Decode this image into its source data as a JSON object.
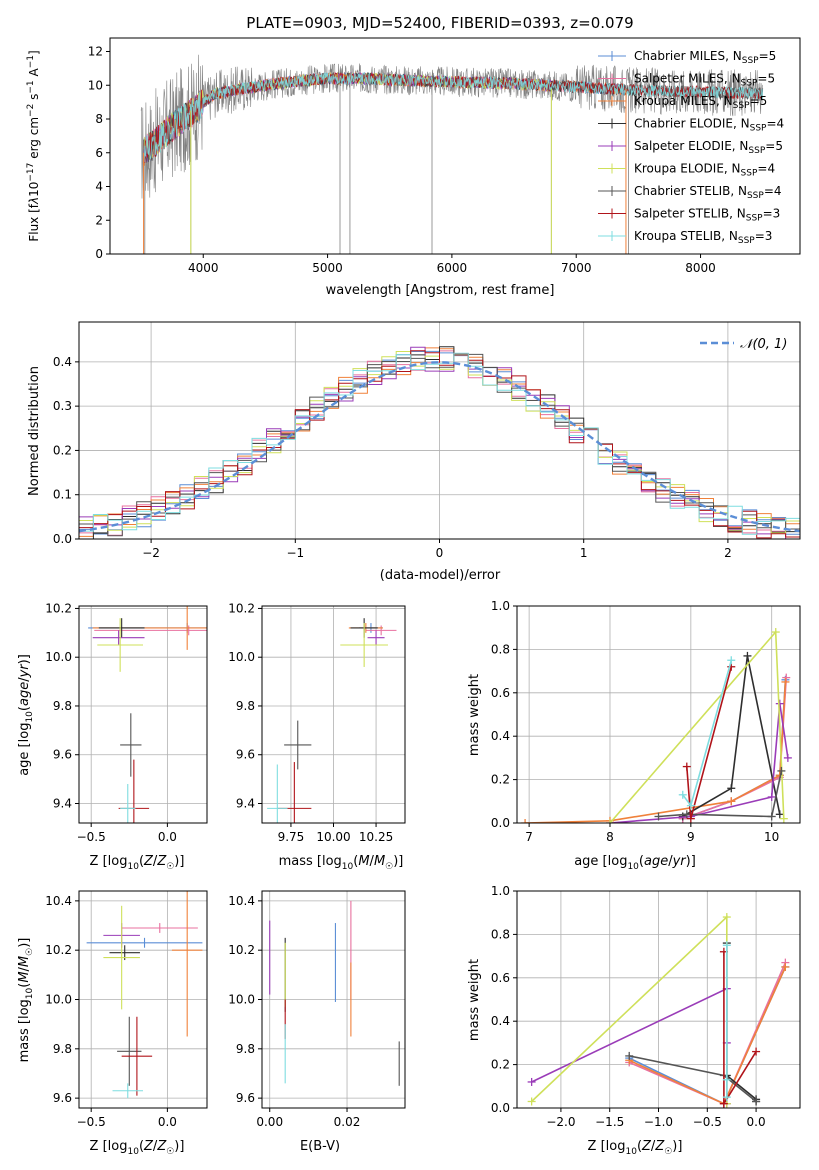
{
  "figure_title": "PLATE=0903, MJD=52400, FIBERID=0393, z=0.079",
  "colors": {
    "Chabrier MILES": "#5b8ed6",
    "Salpeter MILES": "#e8719f",
    "Kroupa MILES": "#f0813a",
    "Chabrier ELODIE": "#2e2e2e",
    "Salpeter ELODIE": "#9a3cb8",
    "Kroupa ELODIE": "#cfe05a",
    "Chabrier STELIB": "#555555",
    "Salpeter STELIB": "#b0141a",
    "Kroupa STELIB": "#7fdde0",
    "data": "#808080",
    "gauss": "#5b8ed6"
  },
  "chart_data": [
    {
      "id": "spectrum",
      "type": "line",
      "title": "PLATE=0903, MJD=52400, FIBERID=0393, z=0.079",
      "xlabel": "wavelength [Angstrom, rest frame]",
      "ylabel": "Flux [f_λ10^-17 erg cm^-2 s^-1 A^-1]",
      "xlim": [
        3250,
        8800
      ],
      "ylim": [
        0,
        12.8
      ],
      "xticks": [
        4000,
        5000,
        6000,
        7000,
        8000
      ],
      "yticks": [
        0,
        2,
        4,
        6,
        8,
        10,
        12
      ],
      "grid": false,
      "legend_position": "right",
      "legend": [
        {
          "label": "Chabrier MILES, N",
          "sub": "SSP",
          "suffix": "=5",
          "color": "#5b8ed6"
        },
        {
          "label": "Salpeter MILES, N",
          "sub": "SSP",
          "suffix": "=5",
          "color": "#e8719f"
        },
        {
          "label": "Kroupa MILES, N",
          "sub": "SSP",
          "suffix": "=5",
          "color": "#f0813a"
        },
        {
          "label": "Chabrier ELODIE, N",
          "sub": "SSP",
          "suffix": "=4",
          "color": "#2e2e2e"
        },
        {
          "label": "Salpeter ELODIE, N",
          "sub": "SSP",
          "suffix": "=5",
          "color": "#9a3cb8"
        },
        {
          "label": "Kroupa ELODIE, N",
          "sub": "SSP",
          "suffix": "=4",
          "color": "#cfe05a"
        },
        {
          "label": "Chabrier STELIB, N",
          "sub": "SSP",
          "suffix": "=4",
          "color": "#555555"
        },
        {
          "label": "Salpeter STELIB, N",
          "sub": "SSP",
          "suffix": "=3",
          "color": "#b0141a"
        },
        {
          "label": "Kroupa STELIB, N",
          "sub": "SSP",
          "suffix": "=3",
          "color": "#7fdde0"
        }
      ],
      "continuum": {
        "x": [
          3500,
          3600,
          3700,
          3800,
          3900,
          4000,
          4100,
          4300,
          4500,
          4700,
          5000,
          5300,
          5600,
          6000,
          6500,
          7000,
          7500,
          8000,
          8500
        ],
        "y": [
          6.0,
          6.5,
          7.2,
          7.8,
          8.3,
          9.0,
          9.5,
          9.8,
          10.0,
          10.2,
          10.4,
          10.4,
          10.3,
          10.2,
          10.1,
          9.9,
          9.7,
          9.6,
          9.5
        ]
      },
      "model_range": [
        3500,
        7400
      ]
    },
    {
      "id": "residuals",
      "type": "line",
      "xlabel": "(data-model)/error",
      "ylabel": "Normed distribution",
      "xlim": [
        -2.5,
        2.5
      ],
      "ylim": [
        0,
        0.49
      ],
      "xticks": [
        -2,
        -1,
        0,
        1,
        2
      ],
      "xtick_labels": [
        "−2",
        "−1",
        "0",
        "1",
        "2"
      ],
      "yticks": [
        0,
        0.1,
        0.2,
        0.3,
        0.4
      ],
      "grid": true,
      "legend_position": "top-right",
      "gauss_label": "𝒩(0, 1)"
    },
    {
      "id": "age_vs_Z",
      "type": "scatter",
      "xlabel": "Z [log10(Z/Z☉)]",
      "ylabel": "age  [log10(age/yr)]",
      "xlim": [
        -0.58,
        0.26
      ],
      "ylim": [
        9.32,
        10.21
      ],
      "xticks": [
        -0.5,
        0.0
      ],
      "xtick_labels": [
        "−0.5",
        "0.0"
      ],
      "yticks": [
        9.4,
        9.6,
        9.8,
        10.0,
        10.2
      ],
      "points": [
        {
          "model": "Chabrier MILES",
          "x": 0.13,
          "y": 10.12,
          "xerr": 0.65,
          "yerr": 0.02
        },
        {
          "model": "Salpeter MILES",
          "x": 0.14,
          "y": 10.11,
          "xerr": 0.62,
          "yerr": 0.02
        },
        {
          "model": "Kroupa MILES",
          "x": 0.13,
          "y": 10.12,
          "xerr": 0.62,
          "yerr": 0.09
        },
        {
          "model": "Chabrier ELODIE",
          "x": -0.3,
          "y": 10.12,
          "xerr": 0.15,
          "yerr": 0.04
        },
        {
          "model": "Salpeter ELODIE",
          "x": -0.32,
          "y": 10.08,
          "xerr": 0.17,
          "yerr": 0.03
        },
        {
          "model": "Kroupa ELODIE",
          "x": -0.31,
          "y": 10.05,
          "xerr": 0.15,
          "yerr": 0.11
        },
        {
          "model": "Chabrier STELIB",
          "x": -0.24,
          "y": 9.64,
          "xerr": 0.07,
          "yerr": 0.13
        },
        {
          "model": "Salpeter STELIB",
          "x": -0.22,
          "y": 9.38,
          "xerr": 0.1,
          "yerr": 0.2
        },
        {
          "model": "Kroupa STELIB",
          "x": -0.26,
          "y": 9.38,
          "xerr": 0.05,
          "yerr": 0.1
        }
      ]
    },
    {
      "id": "age_vs_mass",
      "type": "scatter",
      "xlabel": "mass [log10(M/M☉)]",
      "ylabel": "",
      "xlim": [
        9.58,
        10.42
      ],
      "ylim": [
        9.32,
        10.21
      ],
      "xticks": [
        9.75,
        10.0,
        10.25
      ],
      "xtick_labels": [
        "9.75",
        "10.00",
        "10.25"
      ],
      "yticks": [
        9.4,
        9.6,
        9.8,
        10.0,
        10.2
      ],
      "points": [
        {
          "model": "Chabrier MILES",
          "x": 10.22,
          "y": 10.12,
          "xerr": 0.07,
          "yerr": 0.02
        },
        {
          "model": "Salpeter MILES",
          "x": 10.28,
          "y": 10.11,
          "xerr": 0.09,
          "yerr": 0.02
        },
        {
          "model": "Kroupa MILES",
          "x": 10.19,
          "y": 10.12,
          "xerr": 0.1,
          "yerr": 0.02
        },
        {
          "model": "Chabrier ELODIE",
          "x": 10.18,
          "y": 10.12,
          "xerr": 0.08,
          "yerr": 0.04
        },
        {
          "model": "Salpeter ELODIE",
          "x": 10.25,
          "y": 10.08,
          "xerr": 0.05,
          "yerr": 0.03
        },
        {
          "model": "Kroupa ELODIE",
          "x": 10.18,
          "y": 10.05,
          "xerr": 0.14,
          "yerr": 0.09
        },
        {
          "model": "Chabrier STELIB",
          "x": 9.79,
          "y": 9.64,
          "xerr": 0.08,
          "yerr": 0.1
        },
        {
          "model": "Salpeter STELIB",
          "x": 9.77,
          "y": 9.38,
          "xerr": 0.1,
          "yerr": 0.19
        },
        {
          "model": "Kroupa STELIB",
          "x": 9.67,
          "y": 9.38,
          "xerr": 0.06,
          "yerr": 0.18
        }
      ]
    },
    {
      "id": "weight_vs_age",
      "type": "line",
      "xlabel": "age  [log10(age/yr)]",
      "ylabel": "mass weight",
      "xlim": [
        6.85,
        10.35
      ],
      "ylim": [
        0,
        1.0
      ],
      "xticks": [
        7,
        8,
        9,
        10
      ],
      "yticks": [
        0,
        0.2,
        0.4,
        0.6,
        0.8,
        1.0
      ],
      "grid": true,
      "series": [
        {
          "model": "Chabrier MILES",
          "x": [
            8.9,
            9.5,
            10.1,
            10.17
          ],
          "y": [
            0.02,
            0.1,
            0.22,
            0.66
          ]
        },
        {
          "model": "Salpeter MILES",
          "x": [
            8.9,
            9.5,
            10.1,
            10.18
          ],
          "y": [
            0.02,
            0.1,
            0.21,
            0.67
          ]
        },
        {
          "model": "Kroupa MILES",
          "x": [
            6.95,
            8.0,
            9.5,
            10.1,
            10.17
          ],
          "y": [
            0.0,
            0.01,
            0.1,
            0.22,
            0.65
          ]
        },
        {
          "model": "Chabrier ELODIE",
          "x": [
            8.9,
            9.5,
            9.7,
            10.1
          ],
          "y": [
            0.03,
            0.16,
            0.77,
            0.04
          ]
        },
        {
          "model": "Salpeter ELODIE",
          "x": [
            8.0,
            9.0,
            10.0,
            10.1,
            10.2
          ],
          "y": [
            0.0,
            0.03,
            0.12,
            0.55,
            0.3
          ]
        },
        {
          "model": "Kroupa ELODIE",
          "x": [
            8.0,
            10.05,
            10.15
          ],
          "y": [
            0.0,
            0.88,
            0.02
          ]
        },
        {
          "model": "Chabrier STELIB",
          "x": [
            8.6,
            8.95,
            10.0,
            10.12
          ],
          "y": [
            0.03,
            0.04,
            0.03,
            0.24
          ]
        },
        {
          "model": "Salpeter STELIB",
          "x": [
            8.95,
            9.0,
            9.5
          ],
          "y": [
            0.26,
            0.02,
            0.72
          ]
        },
        {
          "model": "Kroupa STELIB",
          "x": [
            8.9,
            9.0,
            9.5
          ],
          "y": [
            0.13,
            0.08,
            0.75
          ]
        }
      ]
    },
    {
      "id": "mass_vs_Z",
      "type": "scatter",
      "xlabel": "Z [log10(Z/Z☉)]",
      "ylabel": "mass [log10(M/M☉)]",
      "xlim": [
        -0.58,
        0.26
      ],
      "ylim": [
        9.56,
        10.44
      ],
      "xticks": [
        -0.5,
        0.0
      ],
      "xtick_labels": [
        "−0.5",
        "0.0"
      ],
      "yticks": [
        9.6,
        9.8,
        10.0,
        10.2,
        10.4
      ],
      "points": [
        {
          "model": "Chabrier MILES",
          "x": -0.15,
          "y": 10.23,
          "xerr": 0.38,
          "yerr": 0.02
        },
        {
          "model": "Salpeter MILES",
          "x": -0.05,
          "y": 10.29,
          "xerr": 0.25,
          "yerr": 0.02
        },
        {
          "model": "Kroupa MILES",
          "x": 0.13,
          "y": 10.2,
          "xerr": 0.1,
          "yerr": 0.35
        },
        {
          "model": "Chabrier ELODIE",
          "x": -0.28,
          "y": 10.19,
          "xerr": 0.1,
          "yerr": 0.03
        },
        {
          "model": "Salpeter ELODIE",
          "x": -0.3,
          "y": 10.26,
          "xerr": 0.12,
          "yerr": 0.05
        },
        {
          "model": "Kroupa ELODIE",
          "x": -0.3,
          "y": 10.17,
          "xerr": 0.12,
          "yerr": 0.21
        },
        {
          "model": "Chabrier STELIB",
          "x": -0.25,
          "y": 9.79,
          "xerr": 0.08,
          "yerr": 0.14
        },
        {
          "model": "Salpeter STELIB",
          "x": -0.2,
          "y": 9.77,
          "xerr": 0.1,
          "yerr": 0.16
        },
        {
          "model": "Kroupa STELIB",
          "x": -0.26,
          "y": 9.63,
          "xerr": 0.1,
          "yerr": 0.03
        }
      ]
    },
    {
      "id": "mass_vs_EBV",
      "type": "scatter",
      "xlabel": "E(B-V)",
      "ylabel": "",
      "xlim": [
        -0.002,
        0.035
      ],
      "ylim": [
        9.56,
        10.44
      ],
      "xticks": [
        0.0,
        0.02
      ],
      "xtick_labels": [
        "0.00",
        "0.02"
      ],
      "yticks": [
        9.6,
        9.8,
        10.0,
        10.2,
        10.4
      ],
      "points": [
        {
          "model": "Chabrier MILES",
          "x": 0.017,
          "y": 10.15,
          "xerr": 0,
          "yerr": 0.16
        },
        {
          "model": "Salpeter MILES",
          "x": 0.021,
          "y": 10.2,
          "xerr": 0,
          "yerr": 0.2
        },
        {
          "model": "Kroupa MILES",
          "x": 0.021,
          "y": 10.0,
          "xerr": 0,
          "yerr": 0.15
        },
        {
          "model": "Chabrier ELODIE",
          "x": 0.004,
          "y": 10.1,
          "xerr": 0,
          "yerr": 0.15
        },
        {
          "model": "Salpeter ELODIE",
          "x": 0.0,
          "y": 10.17,
          "xerr": 0,
          "yerr": 0.15
        },
        {
          "model": "Kroupa ELODIE",
          "x": 0.004,
          "y": 10.1,
          "xerr": 0,
          "yerr": 0.13
        },
        {
          "model": "Chabrier STELIB",
          "x": 0.0335,
          "y": 9.74,
          "xerr": 0,
          "yerr": 0.09
        },
        {
          "model": "Salpeter STELIB",
          "x": 0.004,
          "y": 9.92,
          "xerr": 0,
          "yerr": 0.08
        },
        {
          "model": "Kroupa STELIB",
          "x": 0.004,
          "y": 9.78,
          "xerr": 0,
          "yerr": 0.12
        }
      ]
    },
    {
      "id": "weight_vs_Z",
      "type": "line",
      "xlabel": "Z [log10(Z/Z☉)]",
      "ylabel": "mass weight",
      "xlim": [
        -2.45,
        0.45
      ],
      "ylim": [
        0,
        1.0
      ],
      "xticks": [
        -2.0,
        -1.5,
        -1.0,
        -0.5,
        0.0
      ],
      "xtick_labels": [
        "−2.0",
        "−1.5",
        "−1.0",
        "−0.5",
        "0.0"
      ],
      "yticks": [
        0,
        0.2,
        0.4,
        0.6,
        0.8,
        1.0
      ],
      "grid": true,
      "series": [
        {
          "model": "Chabrier MILES",
          "x": [
            -1.3,
            -0.33,
            0.3
          ],
          "y": [
            0.23,
            0.02,
            0.65
          ]
        },
        {
          "model": "Salpeter MILES",
          "x": [
            -1.3,
            -0.33,
            0.3
          ],
          "y": [
            0.21,
            0.02,
            0.67
          ]
        },
        {
          "model": "Kroupa MILES",
          "x": [
            -1.3,
            -0.33,
            0.3
          ],
          "y": [
            0.22,
            0.02,
            0.65
          ]
        },
        {
          "model": "Chabrier ELODIE",
          "x": [
            -0.3,
            -0.3,
            0.0,
            0.0
          ],
          "y": [
            0.76,
            0.15,
            0.04,
            0.03
          ]
        },
        {
          "model": "Salpeter ELODIE",
          "x": [
            -2.3,
            -0.3,
            -0.3,
            -0.3
          ],
          "y": [
            0.12,
            0.55,
            0.3,
            0.02
          ]
        },
        {
          "model": "Kroupa ELODIE",
          "x": [
            -2.3,
            -0.3,
            -0.3
          ],
          "y": [
            0.03,
            0.88,
            0.02
          ]
        },
        {
          "model": "Chabrier STELIB",
          "x": [
            -1.3,
            -0.33,
            0.0
          ],
          "y": [
            0.24,
            0.15,
            0.03
          ]
        },
        {
          "model": "Salpeter STELIB",
          "x": [
            -0.33,
            -0.33,
            0.0
          ],
          "y": [
            0.72,
            0.02,
            0.26
          ]
        },
        {
          "model": "Kroupa STELIB",
          "x": [
            -0.3,
            -0.3,
            -0.3
          ],
          "y": [
            0.75,
            0.13,
            0.05
          ]
        }
      ]
    }
  ]
}
